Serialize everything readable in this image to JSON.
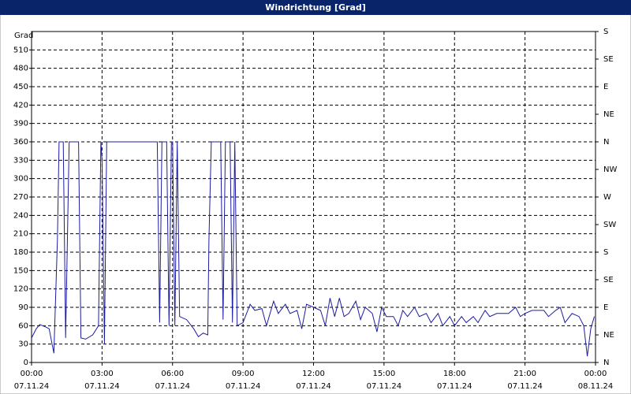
{
  "chart_data": {
    "type": "line",
    "title": "Windrichtung [Grad]",
    "y_label": "Grad",
    "xlim": [
      0,
      24
    ],
    "xticks": [
      {
        "value": 0,
        "label": "00:00"
      },
      {
        "value": 3,
        "label": "03:00"
      },
      {
        "value": 6,
        "label": "06:00"
      },
      {
        "value": 9,
        "label": "09:00"
      },
      {
        "value": 12,
        "label": "12:00"
      },
      {
        "value": 15,
        "label": "15:00"
      },
      {
        "value": 18,
        "label": "18:00"
      },
      {
        "value": 21,
        "label": "21:00"
      },
      {
        "value": 24,
        "label": "00:00"
      }
    ],
    "x_tick_dates": [
      "07.11.24",
      "07.11.24",
      "07.11.24",
      "07.11.24",
      "07.11.24",
      "07.11.24",
      "07.11.24",
      "07.11.24",
      "08.11.24"
    ],
    "ylim": [
      0,
      540
    ],
    "yticks": [
      0,
      30,
      60,
      90,
      120,
      150,
      180,
      210,
      240,
      270,
      300,
      330,
      360,
      390,
      420,
      450,
      480,
      510
    ],
    "y2lim": [
      0,
      540
    ],
    "y2ticks": [
      {
        "value": 0,
        "label": "N"
      },
      {
        "value": 45,
        "label": "NE"
      },
      {
        "value": 90,
        "label": "E"
      },
      {
        "value": 135,
        "label": "SE"
      },
      {
        "value": 180,
        "label": "S"
      },
      {
        "value": 225,
        "label": "SW"
      },
      {
        "value": 270,
        "label": "W"
      },
      {
        "value": 315,
        "label": "NW"
      },
      {
        "value": 360,
        "label": "N"
      },
      {
        "value": 405,
        "label": "NE"
      },
      {
        "value": 450,
        "label": "E"
      },
      {
        "value": 495,
        "label": "SE"
      },
      {
        "value": 540,
        "label": "S"
      }
    ],
    "grid": true,
    "color": "#1c1ca0",
    "x": [
      0,
      0.2,
      0.35,
      0.6,
      0.75,
      0.95,
      1.1,
      1.17,
      1.35,
      1.45,
      1.6,
      2.0,
      2.1,
      2.3,
      2.6,
      2.85,
      2.95,
      3.0,
      3.1,
      3.2,
      3.4,
      5.35,
      5.45,
      5.55,
      5.75,
      5.85,
      5.95,
      6.0,
      6.1,
      6.2,
      6.3,
      6.6,
      6.9,
      7.1,
      7.3,
      7.5,
      7.55,
      7.65,
      8.05,
      8.15,
      8.25,
      8.45,
      8.55,
      8.65,
      8.75,
      9.0,
      9.3,
      9.5,
      9.8,
      10.0,
      10.3,
      10.5,
      10.8,
      11.0,
      11.3,
      11.5,
      11.7,
      12.0,
      12.3,
      12.5,
      12.7,
      12.9,
      13.1,
      13.3,
      13.5,
      13.8,
      14.0,
      14.2,
      14.5,
      14.7,
      14.9,
      15.1,
      15.4,
      15.6,
      15.8,
      16.0,
      16.3,
      16.5,
      16.8,
      17.0,
      17.3,
      17.5,
      17.8,
      18.0,
      18.3,
      18.5,
      18.8,
      19.0,
      19.3,
      19.5,
      19.8,
      20.0,
      20.3,
      20.6,
      20.8,
      21.0,
      21.3,
      21.5,
      21.8,
      22.0,
      22.3,
      22.5,
      22.7,
      23.0,
      23.3,
      23.5,
      23.65,
      23.8,
      23.95
    ],
    "values": [
      40,
      55,
      62,
      58,
      55,
      15,
      200,
      360,
      360,
      40,
      360,
      360,
      40,
      38,
      45,
      60,
      360,
      330,
      30,
      360,
      360,
      360,
      65,
      360,
      360,
      60,
      360,
      360,
      60,
      360,
      75,
      70,
      55,
      42,
      48,
      45,
      200,
      360,
      360,
      70,
      360,
      360,
      65,
      360,
      60,
      65,
      95,
      85,
      88,
      60,
      100,
      80,
      95,
      80,
      85,
      55,
      95,
      90,
      85,
      60,
      105,
      75,
      105,
      75,
      80,
      100,
      70,
      90,
      80,
      50,
      90,
      75,
      75,
      60,
      85,
      75,
      90,
      75,
      80,
      65,
      80,
      60,
      75,
      60,
      75,
      65,
      75,
      65,
      85,
      75,
      80,
      80,
      80,
      90,
      75,
      80,
      85,
      85,
      85,
      75,
      85,
      90,
      65,
      80,
      75,
      60,
      10,
      55,
      75
    ]
  }
}
